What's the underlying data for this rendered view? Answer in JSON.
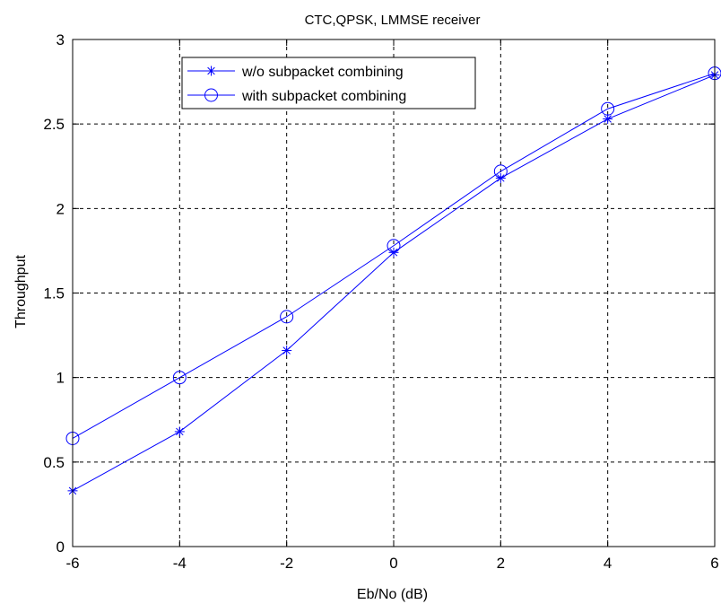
{
  "chart_data": {
    "type": "line",
    "title": "CTC,QPSK, LMMSE receiver",
    "xlabel": "Eb/No (dB)",
    "ylabel": "Throughput",
    "xlim": [
      -6,
      6
    ],
    "ylim": [
      0,
      3
    ],
    "xticks": [
      -6,
      -4,
      -2,
      0,
      2,
      4,
      6
    ],
    "yticks": [
      0,
      0.5,
      1,
      1.5,
      2,
      2.5,
      3
    ],
    "xtick_labels": [
      "-6",
      "-4",
      "-2",
      "0",
      "2",
      "4",
      "6"
    ],
    "ytick_labels": [
      "0",
      "0.5",
      "1",
      "1.5",
      "2",
      "2.5",
      "3"
    ],
    "grid": true,
    "legend_position": "top-left",
    "x": [
      -6,
      -4,
      -2,
      0,
      2,
      4,
      6
    ],
    "series": [
      {
        "name": "w/o subpacket combining",
        "marker": "asterisk",
        "color": "#0000ff",
        "values": [
          0.33,
          0.68,
          1.16,
          1.74,
          2.18,
          2.53,
          2.79
        ]
      },
      {
        "name": "with subpacket combining",
        "marker": "circle",
        "color": "#0000ff",
        "values": [
          0.64,
          1.0,
          1.36,
          1.78,
          2.22,
          2.59,
          2.8
        ]
      }
    ]
  }
}
